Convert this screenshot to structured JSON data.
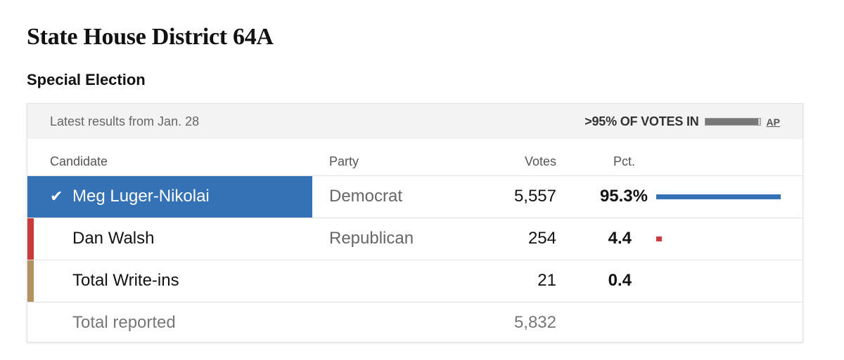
{
  "title": "State House District 64A",
  "subtitle": "Special Election",
  "header": {
    "updated": "Latest results from Jan. 28",
    "votes_in": ">95% OF VOTES IN",
    "reporting_fraction": 0.97,
    "source": "AP"
  },
  "columns": {
    "candidate": "Candidate",
    "party": "Party",
    "votes": "Votes",
    "pct": "Pct."
  },
  "rows": [
    {
      "candidate": "Meg Luger-Nikolai",
      "party": "Democrat",
      "votes": "5,557",
      "pct": "95.3%",
      "pct_value": 95.3,
      "winner": true,
      "color": "#3572b5"
    },
    {
      "candidate": "Dan Walsh",
      "party": "Republican",
      "votes": "254",
      "pct": "4.4",
      "pct_value": 4.4,
      "winner": false,
      "color": "#c93a3a"
    },
    {
      "candidate": "Total Write-ins",
      "party": "",
      "votes": "21",
      "pct": "0.4",
      "pct_value": 0.4,
      "winner": false,
      "color": "#b39160"
    }
  ],
  "total": {
    "label": "Total reported",
    "votes": "5,832"
  },
  "check_icon": "checkmark-icon"
}
